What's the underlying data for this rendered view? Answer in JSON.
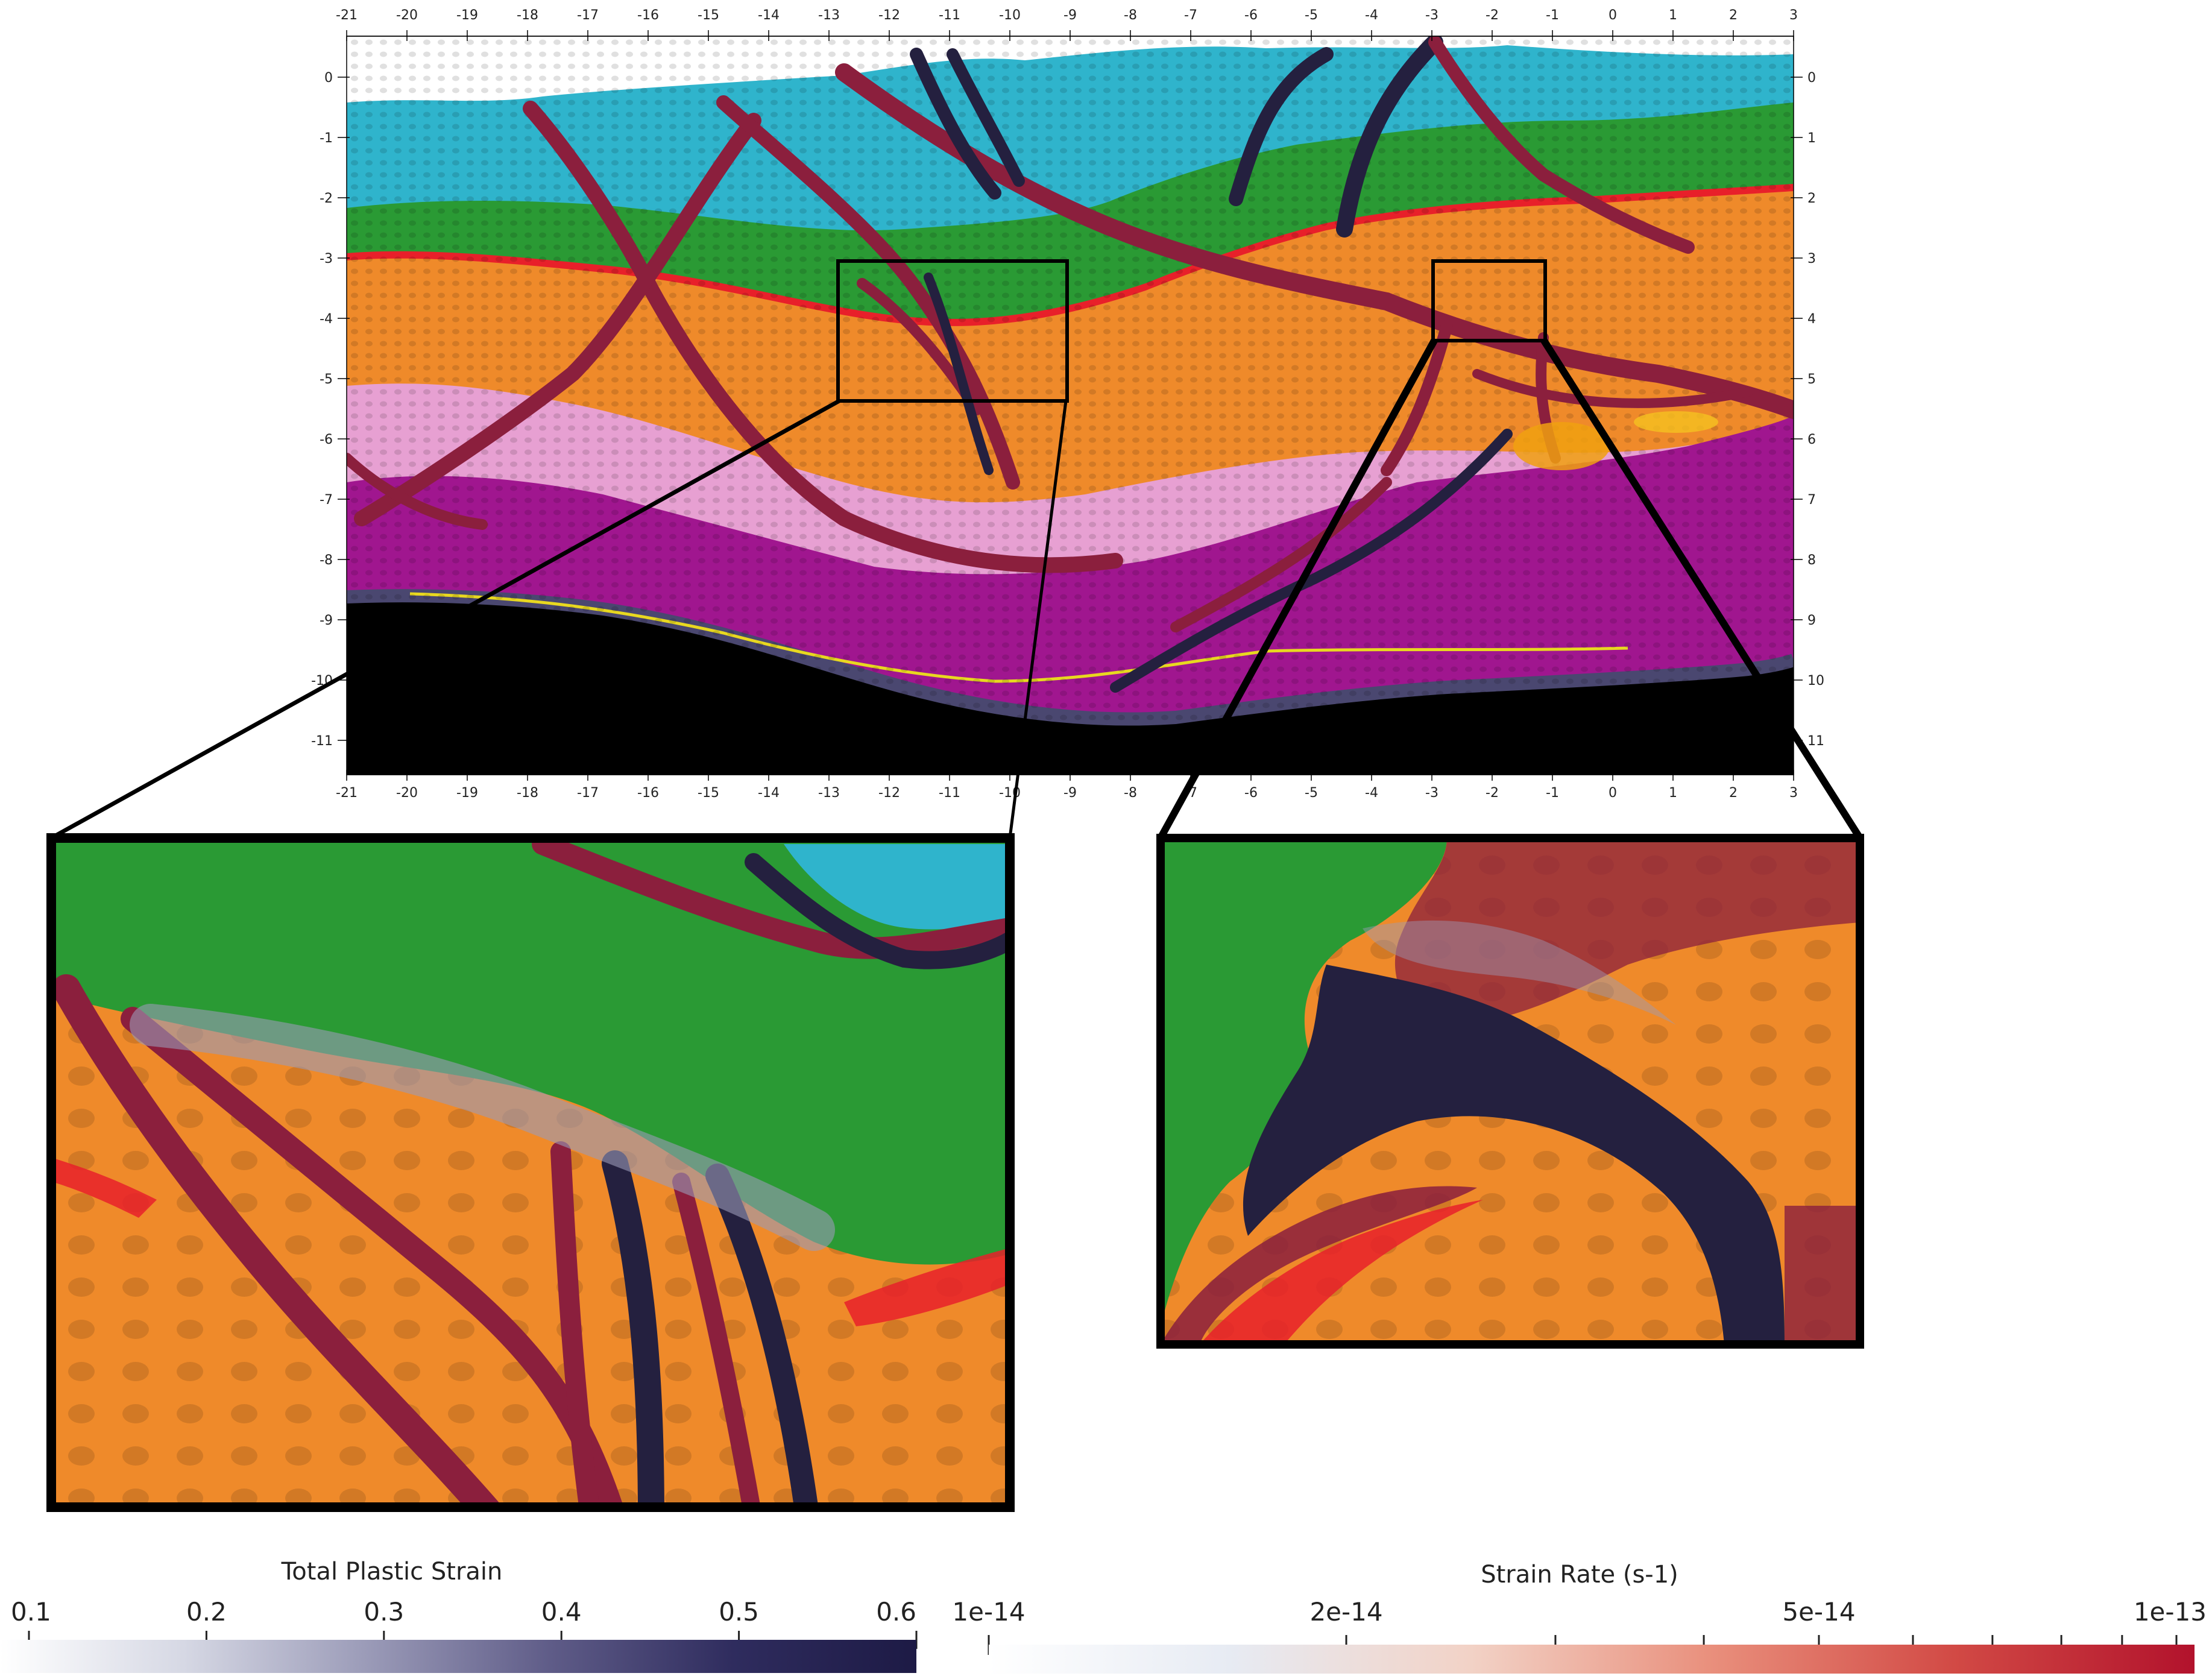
{
  "x_axis": {
    "ticks": [
      -21,
      -20,
      -19,
      -18,
      -17,
      -16,
      -15,
      -14,
      -13,
      -12,
      -11,
      -10,
      -9,
      -8,
      -7,
      -6,
      -5,
      -4,
      -3,
      -2,
      -1,
      0,
      1,
      2,
      3
    ]
  },
  "y_axis": {
    "ticks": [
      0,
      -1,
      -2,
      -3,
      -4,
      -5,
      -6,
      -7,
      -8,
      -9,
      -10,
      -11
    ],
    "right_ticks": [
      0,
      1,
      2,
      3,
      4,
      5,
      6,
      7,
      8,
      9,
      10,
      11
    ]
  },
  "colors": {
    "cyan": "#2fb4cc",
    "green": "#2a9a34",
    "red_layer": "#e8202a",
    "orange": "#ef8a2a",
    "pink": "#e7a0d2",
    "magenta": "#a0168f",
    "basement": "#000000",
    "fault": "#8b1f3d",
    "fault_dark": "#24203f",
    "hot": "#f0a010"
  },
  "colorbars": [
    {
      "title": "Total Plastic Strain",
      "labels": [
        "0.1",
        "0.2",
        "0.3",
        "0.4",
        "0.5",
        "0.6"
      ],
      "gradient": [
        "#ffffff",
        "#d6d8e4",
        "#9b9bb8",
        "#5f5c88",
        "#2f2c5e",
        "#1d1a45"
      ]
    },
    {
      "title": "Strain Rate (s-1)",
      "labels": [
        "1e-14",
        "2e-14",
        "5e-14",
        "1e-13"
      ],
      "gradient": [
        "#ffffff",
        "#e7ebf3",
        "#f2d2c6",
        "#e98f7c",
        "#d24a45",
        "#b2122c"
      ]
    }
  ]
}
